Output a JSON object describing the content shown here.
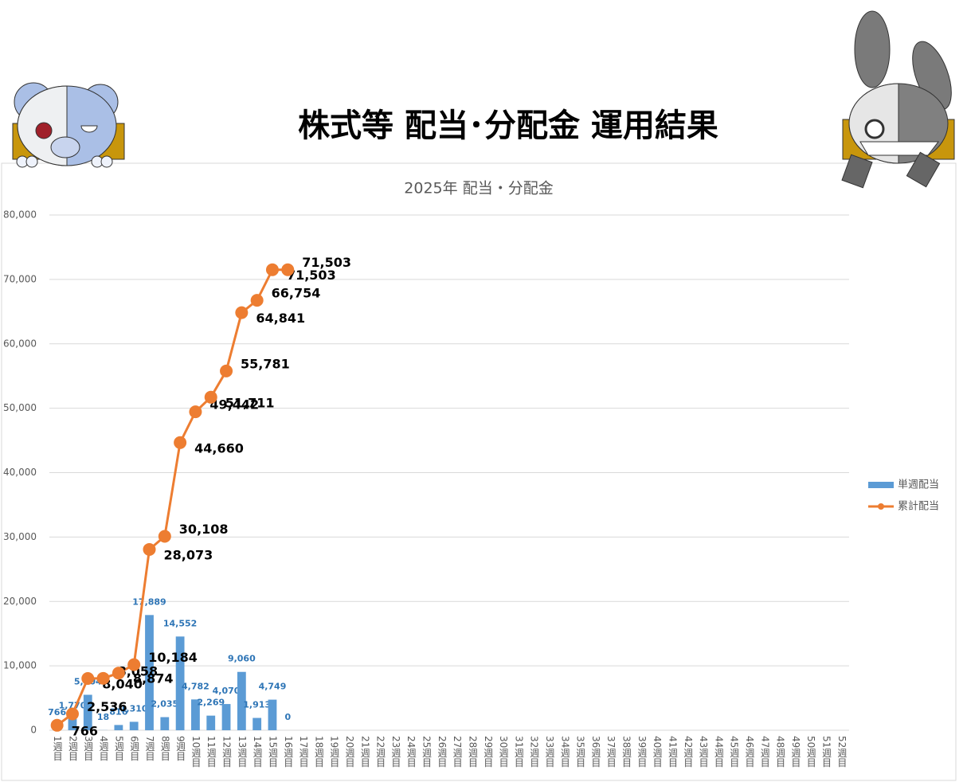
{
  "page_title": "株式等 配当･分配金 運用結果",
  "chart_data": {
    "type": "bar-line",
    "title": "2025年 配当・分配金",
    "categories": [
      "1週目",
      "2週目",
      "3週目",
      "4週目",
      "5週目",
      "6週目",
      "7週目",
      "8週目",
      "9週目",
      "10週目",
      "11週目",
      "12週目",
      "13週目",
      "14週目",
      "15週目",
      "16週目",
      "17週目",
      "18週目",
      "19週目",
      "20週目",
      "21週目",
      "22週目",
      "23週目",
      "24週目",
      "25週目",
      "26週目",
      "27週目",
      "28週目",
      "29週目",
      "30週目",
      "31週目",
      "32週目",
      "33週目",
      "34週目",
      "35週目",
      "36週目",
      "37週目",
      "38週目",
      "39週目",
      "40週目",
      "41週目",
      "42週目",
      "43週目",
      "44週目",
      "45週目",
      "46週目",
      "47週目",
      "48週目",
      "49週目",
      "50週目",
      "51週目",
      "52週目"
    ],
    "series": [
      {
        "name": "単週配当",
        "kind": "bar",
        "color": "#5b9bd5",
        "values": [
          766,
          1770,
          5504,
          18,
          816,
          1310,
          17889,
          2035,
          14552,
          4782,
          2269,
          4070,
          9060,
          1913,
          4749,
          0,
          null,
          null,
          null,
          null,
          null,
          null,
          null,
          null,
          null,
          null,
          null,
          null,
          null,
          null,
          null,
          null,
          null,
          null,
          null,
          null,
          null,
          null,
          null,
          null,
          null,
          null,
          null,
          null,
          null,
          null,
          null,
          null,
          null,
          null,
          null,
          null
        ],
        "value_labels": [
          "766",
          "1,770",
          "5,504",
          "18",
          "816",
          "1,310",
          "17,889",
          "2,035",
          "14,552",
          "4,782",
          "2,269",
          "4,070",
          "9,060",
          "1,913",
          "4,749",
          "0",
          null,
          null,
          null,
          null,
          null,
          null,
          null,
          null,
          null,
          null,
          null,
          null,
          null,
          null,
          null,
          null,
          null,
          null,
          null,
          null,
          null,
          null,
          null,
          null,
          null,
          null,
          null,
          null,
          null,
          null,
          null,
          null,
          null,
          null,
          null,
          null
        ]
      },
      {
        "name": "累計配当",
        "kind": "line",
        "color": "#ed7d31",
        "values": [
          766,
          2536,
          8040,
          8058,
          8874,
          10184,
          28073,
          30108,
          44660,
          49442,
          51711,
          55781,
          64841,
          66754,
          71503,
          71503,
          null,
          null,
          null,
          null,
          null,
          null,
          null,
          null,
          null,
          null,
          null,
          null,
          null,
          null,
          null,
          null,
          null,
          null,
          null,
          null,
          null,
          null,
          null,
          null,
          null,
          null,
          null,
          null,
          null,
          null,
          null,
          null,
          null,
          null,
          null,
          null
        ],
        "value_labels": [
          "766",
          "2,536",
          "8,040",
          "8,058",
          "8,874",
          "10,184",
          "28,073",
          "30,108",
          "44,660",
          "49,442",
          "51,711",
          "55,781",
          "64,841",
          "66,754",
          "71,503",
          "71,503",
          null,
          null,
          null,
          null,
          null,
          null,
          null,
          null,
          null,
          null,
          null,
          null,
          null,
          null,
          null,
          null,
          null,
          null,
          null,
          null,
          null,
          null,
          null,
          null,
          null,
          null,
          null,
          null,
          null,
          null,
          null,
          null,
          null,
          null,
          null,
          null
        ]
      }
    ],
    "ylim": [
      0,
      80000
    ],
    "yticks": [
      0,
      {
        "value": 10000,
        "label": "10,000"
      },
      {
        "value": 20000,
        "label": "20,000"
      },
      {
        "value": 30000,
        "label": "30,000"
      },
      {
        "value": 40000,
        "label": "40,000"
      },
      {
        "value": 50000,
        "label": "50,000"
      },
      {
        "value": 60000,
        "label": "60,000"
      },
      {
        "value": 70000,
        "label": "70,000"
      },
      {
        "value": 80000,
        "label": "80,000"
      }
    ],
    "grid": true,
    "legend": "right"
  }
}
